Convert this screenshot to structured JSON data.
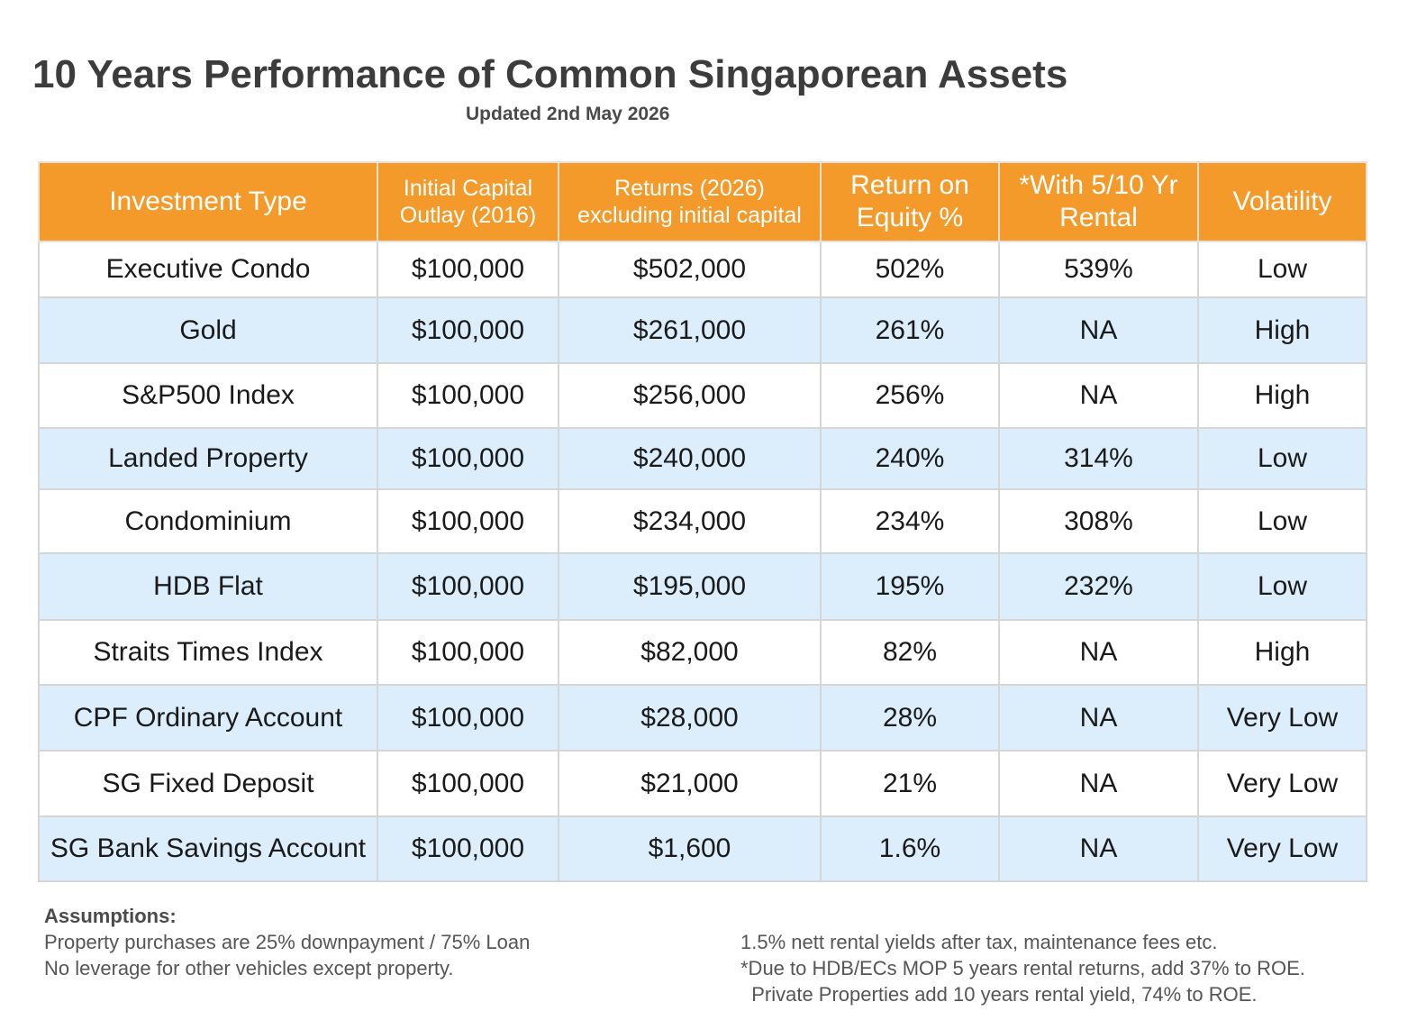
{
  "title": "10 Years Performance of Common Singaporean Assets",
  "subtitle": "Updated 2nd May 2026",
  "table": {
    "headers": {
      "type": "Investment Type",
      "capital_line1": "Initial Capital",
      "capital_line2": "Outlay (2016)",
      "returns_line1": "Returns (2026)",
      "returns_line2": "excluding initial capital",
      "roe_line1": "Return on",
      "roe_line2": "Equity %",
      "rental_line1": "*With 5/10 Yr",
      "rental_line2": "Rental",
      "volatility": "Volatility"
    },
    "rows": [
      {
        "type": "Executive Condo",
        "capital": "$100,000",
        "returns": "$502,000",
        "roe": "502%",
        "rental": "539%",
        "volatility": "Low"
      },
      {
        "type": "Gold",
        "capital": "$100,000",
        "returns": "$261,000",
        "roe": "261%",
        "rental": "NA",
        "volatility": "High"
      },
      {
        "type": "S&P500 Index",
        "capital": "$100,000",
        "returns": "$256,000",
        "roe": "256%",
        "rental": "NA",
        "volatility": "High"
      },
      {
        "type": "Landed Property",
        "capital": "$100,000",
        "returns": "$240,000",
        "roe": "240%",
        "rental": "314%",
        "volatility": "Low"
      },
      {
        "type": "Condominium",
        "capital": "$100,000",
        "returns": "$234,000",
        "roe": "234%",
        "rental": "308%",
        "volatility": "Low"
      },
      {
        "type": "HDB Flat",
        "capital": "$100,000",
        "returns": "$195,000",
        "roe": "195%",
        "rental": "232%",
        "volatility": "Low"
      },
      {
        "type": "Straits Times Index",
        "capital": "$100,000",
        "returns": "$82,000",
        "roe": "82%",
        "rental": "NA",
        "volatility": "High"
      },
      {
        "type": "CPF Ordinary Account",
        "capital": "$100,000",
        "returns": "$28,000",
        "roe": "28%",
        "rental": "NA",
        "volatility": "Very Low"
      },
      {
        "type": "SG Fixed Deposit",
        "capital": "$100,000",
        "returns": "$21,000",
        "roe": "21%",
        "rental": "NA",
        "volatility": "Very Low"
      },
      {
        "type": "SG Bank Savings Account",
        "capital": "$100,000",
        "returns": "$1,600",
        "roe": "1.6%",
        "rental": "NA",
        "volatility": "Very Low"
      }
    ]
  },
  "assumptions": {
    "heading": "Assumptions:",
    "left": [
      "Property purchases are 25% downpayment / 75% Loan",
      "No leverage for other vehicles except property."
    ],
    "right": [
      "1.5% nett rental yields after tax, maintenance fees etc.",
      "*Due to HDB/ECs MOP 5 years rental returns, add 37% to ROE.",
      "  Private Properties add 10 years rental yield, 74% to ROE."
    ]
  },
  "colors": {
    "header_bg": "#f39a2b",
    "stripe_bg": "#dcedfb",
    "title_text": "#3c3c3c"
  }
}
